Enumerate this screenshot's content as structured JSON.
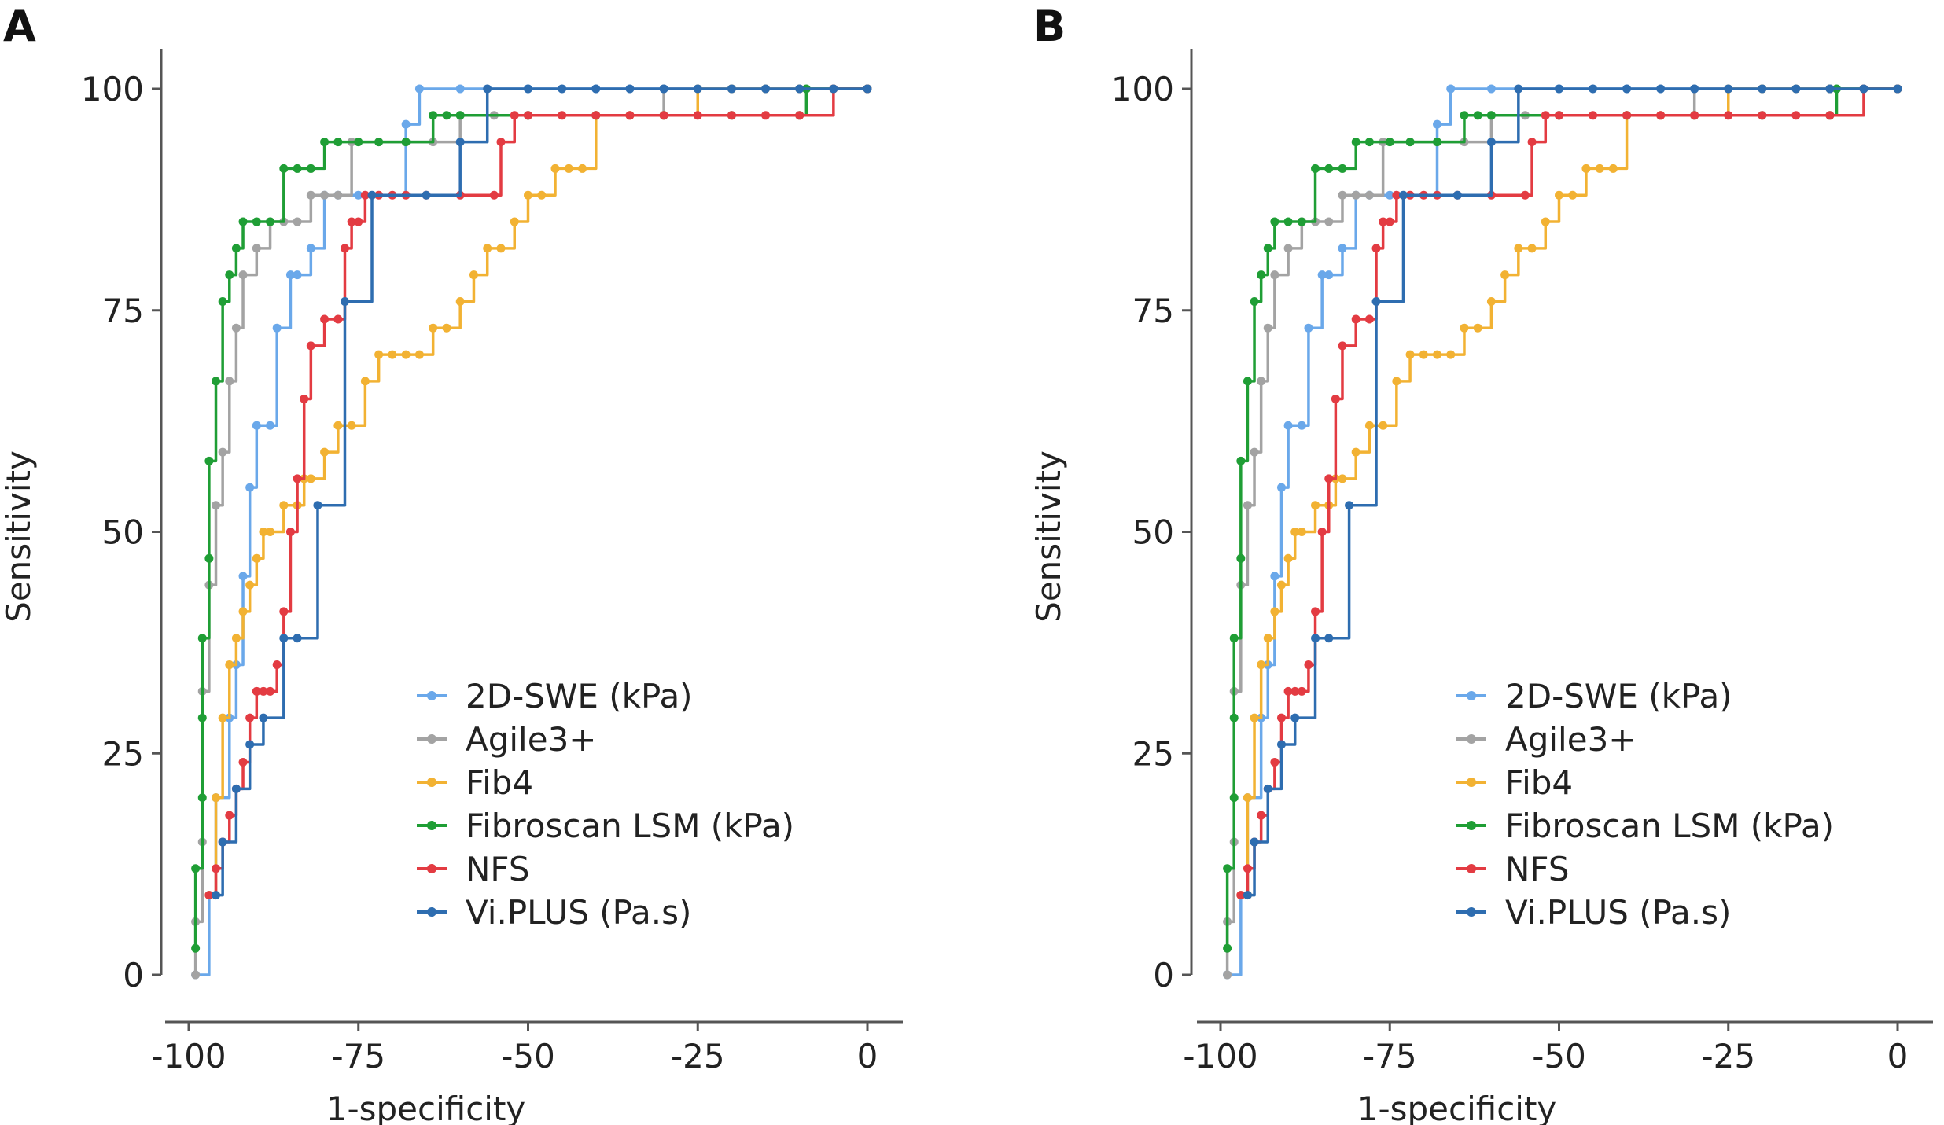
{
  "colors": {
    "2D-SWE (kPa)": "#6aa8ea",
    "Agile3+": "#a3a3a3",
    "Fib4": "#f2b233",
    "Fibroscan LSM (kPa)": "#1f9e35",
    "NFS": "#e33b42",
    "Vi.PLUS (Pa.s)": "#2e6db0",
    "axis": "#555555"
  },
  "chart_data": [
    {
      "panel_label": "A",
      "type": "line",
      "xlabel": "1-specificity",
      "ylabel": "Sensitivity",
      "xlim": [
        -100,
        0
      ],
      "ylim": [
        0,
        100
      ],
      "xticks": [
        -100,
        -75,
        -50,
        -25,
        0
      ],
      "yticks": [
        0,
        25,
        50,
        75,
        100
      ],
      "legend_position": "lower-right",
      "series": [
        {
          "name": "2D-SWE (kPa)",
          "x": [
            -99,
            -97,
            -96,
            -94,
            -93,
            -92,
            -91,
            -90,
            -88,
            -87,
            -85,
            -84,
            -82,
            -80,
            -78,
            -75,
            -68,
            -66,
            -60,
            -50,
            -40,
            -30,
            -20,
            -10,
            0
          ],
          "y": [
            0,
            9,
            20,
            29,
            35,
            45,
            55,
            62,
            62,
            73,
            79,
            79,
            82,
            88,
            88,
            88,
            96,
            100,
            100,
            100,
            100,
            100,
            100,
            100,
            100
          ]
        },
        {
          "name": "Agile3+",
          "x": [
            -99,
            -99,
            -98,
            -98,
            -97,
            -96,
            -95,
            -94,
            -93,
            -92,
            -90,
            -88,
            -86,
            -84,
            -82,
            -80,
            -78,
            -76,
            -72,
            -68,
            -64,
            -60,
            -55,
            -50,
            -40,
            -35,
            -30,
            -20,
            -10,
            0
          ],
          "y": [
            0,
            6,
            15,
            32,
            44,
            53,
            59,
            67,
            73,
            79,
            82,
            85,
            85,
            85,
            88,
            88,
            88,
            94,
            94,
            94,
            94,
            97,
            97,
            97,
            97,
            97,
            100,
            100,
            100,
            100
          ]
        },
        {
          "name": "Fib4",
          "x": [
            -97,
            -96,
            -96,
            -95,
            -94,
            -93,
            -92,
            -91,
            -90,
            -89,
            -88,
            -86,
            -84,
            -83,
            -82,
            -80,
            -78,
            -76,
            -74,
            -72,
            -70,
            -68,
            -66,
            -64,
            -62,
            -60,
            -58,
            -56,
            -54,
            -52,
            -50,
            -48,
            -46,
            -44,
            -42,
            -40,
            -35,
            -30,
            -25,
            -20,
            -15,
            -10,
            -5,
            0
          ],
          "y": [
            9,
            9,
            20,
            29,
            35,
            38,
            41,
            44,
            47,
            50,
            50,
            53,
            53,
            56,
            56,
            59,
            62,
            62,
            67,
            70,
            70,
            70,
            70,
            73,
            73,
            76,
            79,
            82,
            82,
            85,
            88,
            88,
            91,
            91,
            91,
            97,
            97,
            97,
            100,
            100,
            100,
            100,
            100,
            100
          ]
        },
        {
          "name": "Fibroscan LSM (kPa)",
          "x": [
            -99,
            -99,
            -98,
            -98,
            -98,
            -97,
            -97,
            -96,
            -95,
            -94,
            -93,
            -92,
            -90,
            -88,
            -86,
            -84,
            -82,
            -80,
            -78,
            -75,
            -72,
            -68,
            -64,
            -62,
            -60,
            -50,
            -40,
            -30,
            -20,
            -10,
            -9,
            0
          ],
          "y": [
            3,
            12,
            20,
            29,
            38,
            47,
            58,
            67,
            76,
            79,
            82,
            85,
            85,
            85,
            91,
            91,
            91,
            94,
            94,
            94,
            94,
            94,
            97,
            97,
            97,
            97,
            97,
            97,
            97,
            97,
            100,
            100
          ]
        },
        {
          "name": "NFS",
          "x": [
            -97,
            -96,
            -95,
            -94,
            -93,
            -92,
            -91,
            -90,
            -89,
            -88,
            -87,
            -86,
            -85,
            -84,
            -83,
            -82,
            -80,
            -78,
            -77,
            -76,
            -75,
            -74,
            -72,
            -70,
            -68,
            -65,
            -60,
            -55,
            -54,
            -52,
            -50,
            -45,
            -40,
            -35,
            -30,
            -25,
            -20,
            -15,
            -10,
            -5,
            0
          ],
          "y": [
            9,
            12,
            15,
            18,
            21,
            24,
            29,
            32,
            32,
            32,
            35,
            41,
            50,
            56,
            65,
            71,
            74,
            74,
            82,
            85,
            85,
            88,
            88,
            88,
            88,
            88,
            88,
            88,
            94,
            97,
            97,
            97,
            97,
            97,
            97,
            97,
            97,
            97,
            97,
            100,
            100
          ]
        },
        {
          "name": "Vi.PLUS (Pa.s)",
          "x": [
            -96,
            -95,
            -93,
            -91,
            -89,
            -86,
            -84,
            -81,
            -77,
            -73,
            -65,
            -60,
            -56,
            -50,
            -45,
            -40,
            -35,
            -30,
            -25,
            -20,
            -15,
            -10,
            -5,
            0
          ],
          "y": [
            9,
            15,
            21,
            26,
            29,
            38,
            38,
            53,
            76,
            88,
            88,
            94,
            100,
            100,
            100,
            100,
            100,
            100,
            100,
            100,
            100,
            100,
            100,
            100
          ]
        }
      ]
    },
    {
      "panel_label": "B",
      "type": "line",
      "xlabel": "1-specificity",
      "ylabel": "Sensitivity",
      "xlim": [
        -100,
        0
      ],
      "ylim": [
        0,
        100
      ],
      "xticks": [
        -100,
        -75,
        -50,
        -25,
        0
      ],
      "yticks": [
        0,
        25,
        50,
        75,
        100
      ],
      "legend_position": "lower-right",
      "series": [
        {
          "name": "2D-SWE (kPa)",
          "x": [
            -99,
            -97,
            -96,
            -94,
            -93,
            -92,
            -91,
            -90,
            -88,
            -87,
            -85,
            -84,
            -82,
            -80,
            -78,
            -75,
            -68,
            -66,
            -60,
            -50,
            -40,
            -30,
            -20,
            -10,
            0
          ],
          "y": [
            0,
            9,
            20,
            29,
            35,
            45,
            55,
            62,
            62,
            73,
            79,
            79,
            82,
            88,
            88,
            88,
            96,
            100,
            100,
            100,
            100,
            100,
            100,
            100,
            100
          ]
        },
        {
          "name": "Agile3+",
          "x": [
            -99,
            -99,
            -98,
            -98,
            -97,
            -96,
            -95,
            -94,
            -93,
            -92,
            -90,
            -88,
            -86,
            -84,
            -82,
            -80,
            -78,
            -76,
            -72,
            -68,
            -64,
            -60,
            -55,
            -50,
            -40,
            -35,
            -30,
            -20,
            -10,
            0
          ],
          "y": [
            0,
            6,
            15,
            32,
            44,
            53,
            59,
            67,
            73,
            79,
            82,
            85,
            85,
            85,
            88,
            88,
            88,
            94,
            94,
            94,
            94,
            97,
            97,
            97,
            97,
            97,
            100,
            100,
            100,
            100
          ]
        },
        {
          "name": "Fib4",
          "x": [
            -97,
            -96,
            -96,
            -95,
            -94,
            -93,
            -92,
            -91,
            -90,
            -89,
            -88,
            -86,
            -84,
            -83,
            -82,
            -80,
            -78,
            -76,
            -74,
            -72,
            -70,
            -68,
            -66,
            -64,
            -62,
            -60,
            -58,
            -56,
            -54,
            -52,
            -50,
            -48,
            -46,
            -44,
            -42,
            -40,
            -35,
            -30,
            -25,
            -20,
            -15,
            -10,
            -5,
            0
          ],
          "y": [
            9,
            9,
            20,
            29,
            35,
            38,
            41,
            44,
            47,
            50,
            50,
            53,
            53,
            56,
            56,
            59,
            62,
            62,
            67,
            70,
            70,
            70,
            70,
            73,
            73,
            76,
            79,
            82,
            82,
            85,
            88,
            88,
            91,
            91,
            91,
            97,
            97,
            97,
            100,
            100,
            100,
            100,
            100,
            100
          ]
        },
        {
          "name": "Fibroscan LSM (kPa)",
          "x": [
            -99,
            -99,
            -98,
            -98,
            -98,
            -97,
            -97,
            -96,
            -95,
            -94,
            -93,
            -92,
            -90,
            -88,
            -86,
            -84,
            -82,
            -80,
            -78,
            -75,
            -72,
            -68,
            -64,
            -62,
            -60,
            -50,
            -40,
            -30,
            -20,
            -10,
            -9,
            0
          ],
          "y": [
            3,
            12,
            20,
            29,
            38,
            47,
            58,
            67,
            76,
            79,
            82,
            85,
            85,
            85,
            91,
            91,
            91,
            94,
            94,
            94,
            94,
            94,
            97,
            97,
            97,
            97,
            97,
            97,
            97,
            97,
            100,
            100
          ]
        },
        {
          "name": "NFS",
          "x": [
            -97,
            -96,
            -95,
            -94,
            -93,
            -92,
            -91,
            -90,
            -89,
            -88,
            -87,
            -86,
            -85,
            -84,
            -83,
            -82,
            -80,
            -78,
            -77,
            -76,
            -75,
            -74,
            -72,
            -70,
            -68,
            -65,
            -60,
            -55,
            -54,
            -52,
            -50,
            -45,
            -40,
            -35,
            -30,
            -25,
            -20,
            -15,
            -10,
            -5,
            0
          ],
          "y": [
            9,
            12,
            15,
            18,
            21,
            24,
            29,
            32,
            32,
            32,
            35,
            41,
            50,
            56,
            65,
            71,
            74,
            74,
            82,
            85,
            85,
            88,
            88,
            88,
            88,
            88,
            88,
            88,
            94,
            97,
            97,
            97,
            97,
            97,
            97,
            97,
            97,
            97,
            97,
            100,
            100
          ]
        },
        {
          "name": "Vi.PLUS (Pa.s)",
          "x": [
            -96,
            -95,
            -93,
            -91,
            -89,
            -86,
            -84,
            -81,
            -77,
            -73,
            -65,
            -60,
            -56,
            -50,
            -45,
            -40,
            -35,
            -30,
            -25,
            -20,
            -15,
            -10,
            -5,
            0
          ],
          "y": [
            9,
            15,
            21,
            26,
            29,
            38,
            38,
            53,
            76,
            88,
            88,
            94,
            100,
            100,
            100,
            100,
            100,
            100,
            100,
            100,
            100,
            100,
            100,
            100
          ]
        }
      ]
    }
  ]
}
